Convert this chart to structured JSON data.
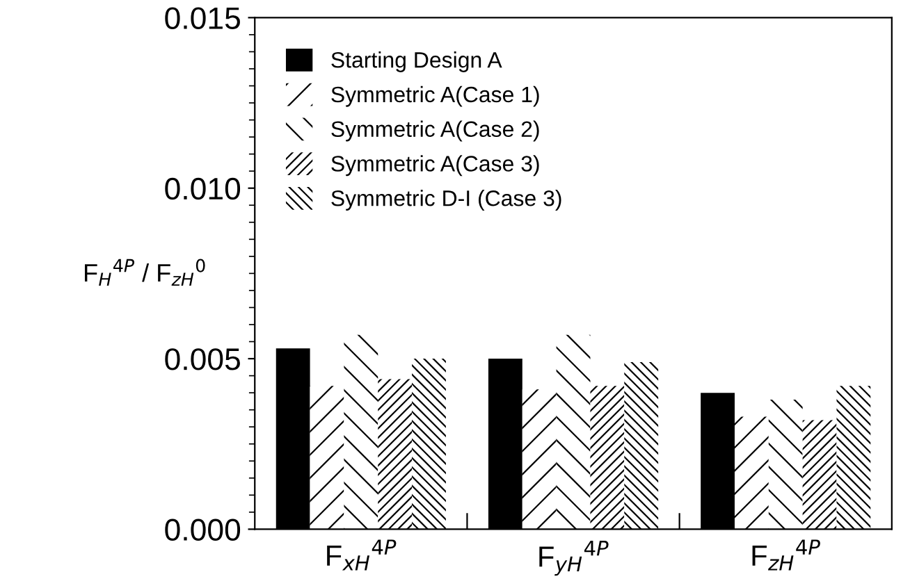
{
  "chart_data": {
    "type": "bar",
    "ylabel": "F$_{H}$$^{4P}$ / F$_{zH}$$^{0}$",
    "categories": [
      "F$_{xH}$$^{4P}$",
      "F$_{yH}$$^{4P}$",
      "F$_{zH}$$^{4P}$"
    ],
    "series": [
      {
        "name": "Starting Design A",
        "color": "#000000",
        "values": [
          0.0053,
          0.005,
          0.004
        ]
      },
      {
        "name": "Symmetric A(Case 1)",
        "color": "#ffffff",
        "values": [
          0.0042,
          0.0041,
          0.0033
        ]
      },
      {
        "name": "Symmetric A(Case 2)",
        "color": "#ffffff",
        "values": [
          0.0057,
          0.0057,
          0.0038
        ]
      },
      {
        "name": "Symmetric A(Case 3)",
        "color": "#ffffff",
        "values": [
          0.0044,
          0.0042,
          0.0032
        ]
      },
      {
        "name": "Symmetric D-I (Case 3)",
        "color": "#ffffff",
        "values": [
          0.005,
          0.0049,
          0.0042
        ]
      }
    ],
    "ylim": [
      0,
      0.015
    ],
    "yticks": [
      {
        "value": 0,
        "label": "0.000"
      },
      {
        "value": 0.005,
        "label": "0.005"
      },
      {
        "value": 0.01,
        "label": "0.010"
      },
      {
        "value": 0.015,
        "label": "0.015"
      }
    ],
    "grid": false,
    "legend": "top left"
  }
}
